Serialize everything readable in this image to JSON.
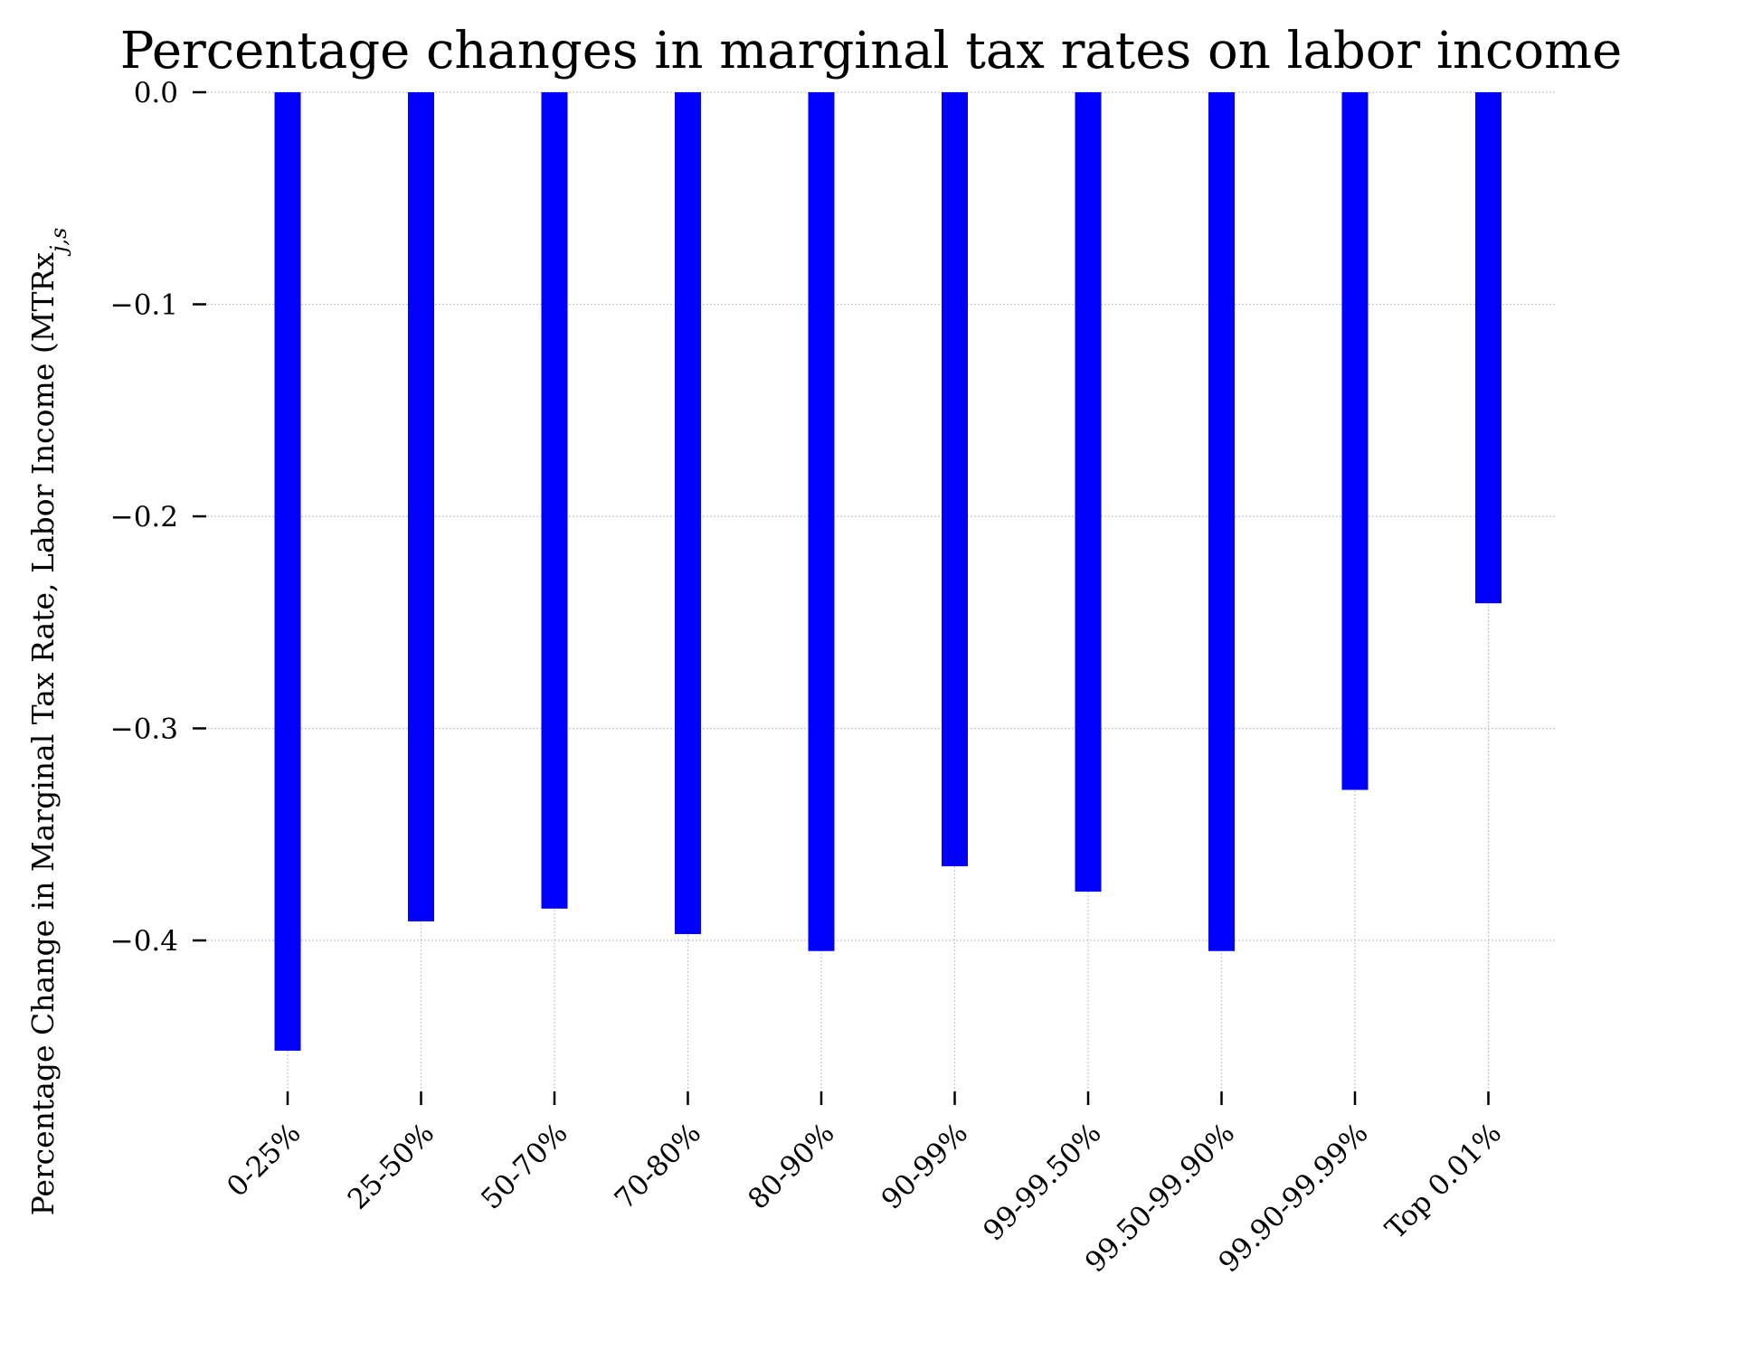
{
  "chart_data": {
    "type": "bar",
    "title": "Percentage changes in marginal tax rates on labor income",
    "ylabel": "Percentage Change in Marginal Tax Rate, Labor Income (MTRx",
    "ylabel_subscript": "j,s",
    "categories": [
      "0-25%",
      "25-50%",
      "50-70%",
      "70-80%",
      "80-90%",
      "90-99%",
      "99-99.50%",
      "99.50-99.90%",
      "99.90-99.99%",
      "Top 0.01%"
    ],
    "values": [
      -0.452,
      -0.391,
      -0.385,
      -0.397,
      -0.405,
      -0.365,
      -0.377,
      -0.405,
      -0.329,
      -0.241
    ],
    "ylim": [
      -0.475,
      0.0
    ],
    "yticks": [
      0.0,
      -0.1,
      -0.2,
      -0.3,
      -0.4
    ],
    "ytick_labels": [
      "0.0",
      "−0.1",
      "−0.2",
      "−0.3",
      "−0.4"
    ],
    "grid": true,
    "bar_color": "#0000ff",
    "xtick_rotation": 45
  }
}
